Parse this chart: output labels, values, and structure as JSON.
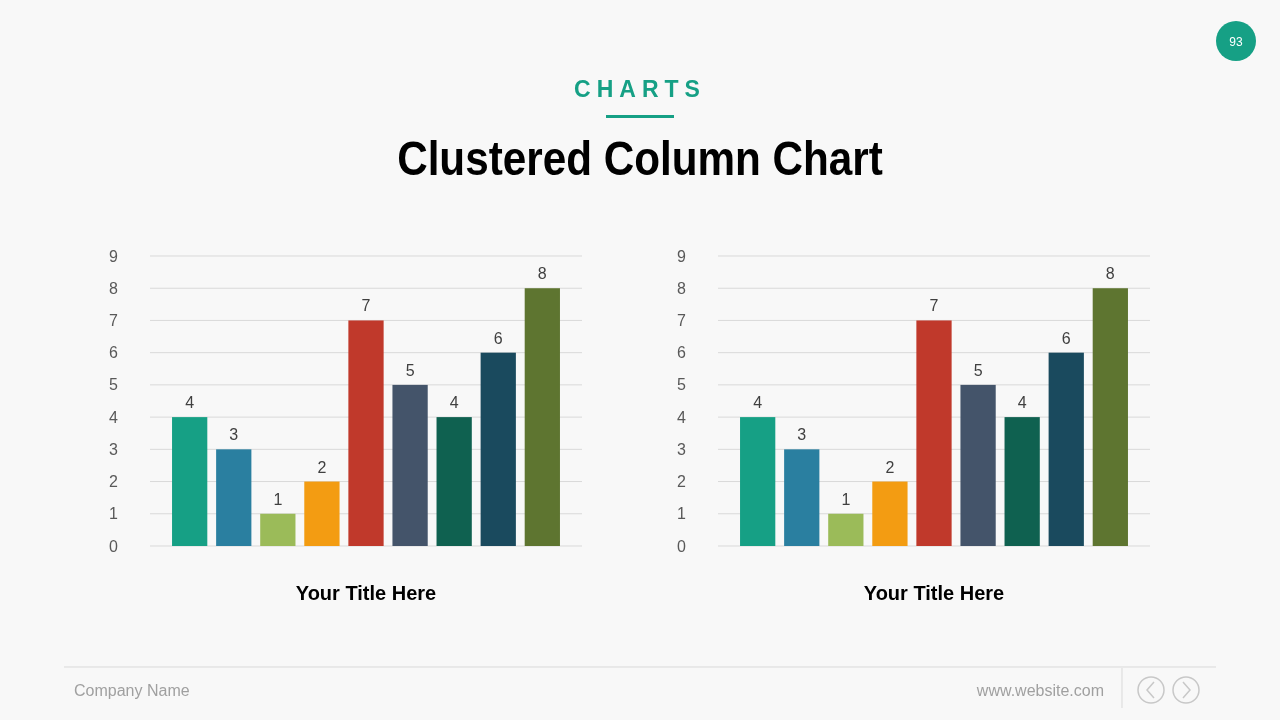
{
  "chart_data": [
    {
      "type": "other",
      "subtitle": "CHARTS",
      "title": "Clustered Column Chart",
      "annotations": [
        "93",
        "Company Name",
        "www.website.com"
      ]
    },
    {
      "type": "bar",
      "title": "Your Title Here",
      "categories": [
        null,
        null,
        null,
        null,
        null,
        null,
        null,
        null,
        null
      ],
      "values": [
        4,
        3,
        1,
        2,
        7,
        5,
        4,
        6,
        8
      ],
      "colors": [
        "#16a085",
        "#2a7fa0",
        "#9bbb59",
        "#f39c12",
        "#c0392b",
        "#44546a",
        "#0f6150",
        "#1a4a5e",
        "#5e7530"
      ],
      "ylim": [
        0,
        9
      ],
      "yticks": [
        0,
        1,
        2,
        3,
        4,
        5,
        6,
        7,
        8,
        9
      ],
      "grid": "y",
      "data_labels": true
    },
    {
      "type": "bar",
      "title": "Your Title Here",
      "categories": [
        null,
        null,
        null,
        null,
        null,
        null,
        null,
        null,
        null
      ],
      "values": [
        4,
        3,
        1,
        2,
        7,
        5,
        4,
        6,
        8
      ],
      "colors": [
        "#16a085",
        "#2a7fa0",
        "#9bbb59",
        "#f39c12",
        "#c0392b",
        "#44546a",
        "#0f6150",
        "#1a4a5e",
        "#5e7530"
      ],
      "ylim": [
        0,
        9
      ],
      "yticks": [
        0,
        1,
        2,
        3,
        4,
        5,
        6,
        7,
        8,
        9
      ],
      "grid": "y",
      "data_labels": true
    }
  ]
}
